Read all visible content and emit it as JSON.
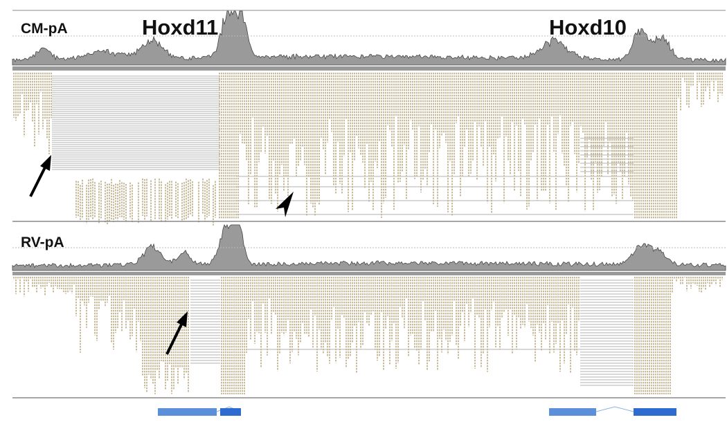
{
  "tracks": [
    {
      "label": "CM-pA"
    },
    {
      "label": "RV-pA"
    }
  ],
  "genes": [
    {
      "label": "Hoxd11"
    },
    {
      "label": "Hoxd10"
    }
  ]
}
